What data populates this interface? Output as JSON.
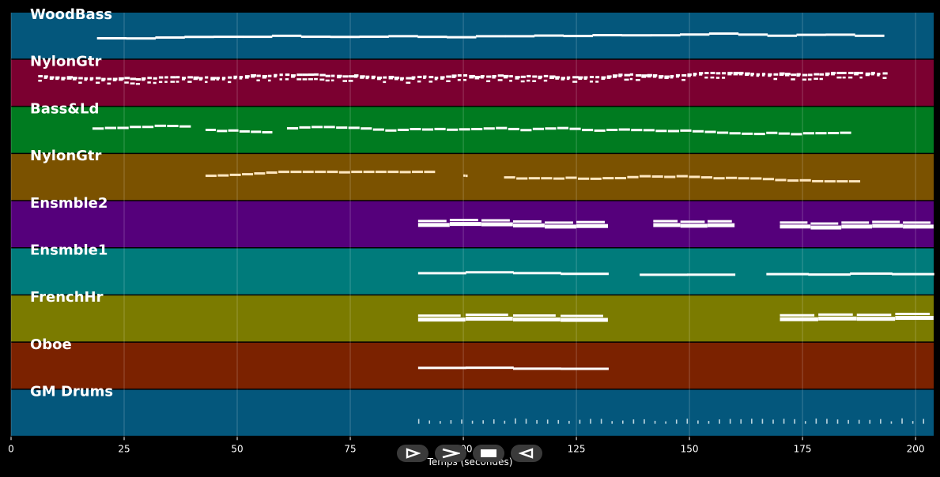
{
  "x_axis": {
    "label": "Temps (secondes)",
    "min": 0,
    "max": 204,
    "ticks": [
      0,
      25,
      50,
      75,
      100,
      125,
      150,
      175,
      200
    ]
  },
  "tracks": [
    {
      "name": "WoodBass",
      "color": "#04577c",
      "note_color": "#ffffff",
      "segments": [
        [
          19,
          193
        ]
      ],
      "style": "sparse",
      "density": 30
    },
    {
      "name": "NylonGtr",
      "color": "#7b0030",
      "note_color": "#ffffff",
      "segments": [
        [
          6,
          194
        ]
      ],
      "style": "dense",
      "density": 150
    },
    {
      "name": "Bass&Ld",
      "color": "#007b20",
      "note_color": "#ffffff",
      "segments": [
        [
          18,
          40
        ],
        [
          43,
          58
        ],
        [
          61,
          186
        ]
      ],
      "style": "medium",
      "density": 70
    },
    {
      "name": "NylonGtr",
      "color": "#7b5200",
      "note_color": "#ffe7c0",
      "segments": [
        [
          43,
          94
        ],
        [
          100,
          101
        ],
        [
          109,
          188
        ]
      ],
      "style": "medium",
      "density": 70
    },
    {
      "name": "Ensmble2",
      "color": "#55007b",
      "note_color": "#ffffff",
      "segments": [
        [
          90,
          132
        ],
        [
          142,
          160
        ],
        [
          170,
          204
        ]
      ],
      "style": "thick",
      "density": 28
    },
    {
      "name": "Ensmble1",
      "color": "#007b7b",
      "note_color": "#ffffff",
      "segments": [
        [
          90,
          132
        ],
        [
          139,
          160
        ],
        [
          167,
          204
        ]
      ],
      "style": "sparse",
      "density": 20
    },
    {
      "name": "FrenchHr",
      "color": "#7b7b00",
      "note_color": "#ffffff",
      "segments": [
        [
          90,
          132
        ],
        [
          170,
          204
        ]
      ],
      "style": "thick",
      "density": 20
    },
    {
      "name": "Oboe",
      "color": "#7b2200",
      "note_color": "#ffffff",
      "segments": [
        [
          90,
          132
        ]
      ],
      "style": "sparse",
      "density": 18
    },
    {
      "name": "GM Drums",
      "color": "#04577c",
      "note_color": "#bcd6e0",
      "segments": [
        [
          90,
          204
        ]
      ],
      "style": "drums",
      "density": 80
    }
  ],
  "transport": {
    "buttons": [
      {
        "name": "play-outline-button",
        "icon": "play-outline-icon"
      },
      {
        "name": "forward-button",
        "icon": "chevron-right-icon"
      },
      {
        "name": "stop-button",
        "icon": "stop-icon"
      },
      {
        "name": "rewind-button",
        "icon": "play-reverse-icon"
      }
    ]
  }
}
